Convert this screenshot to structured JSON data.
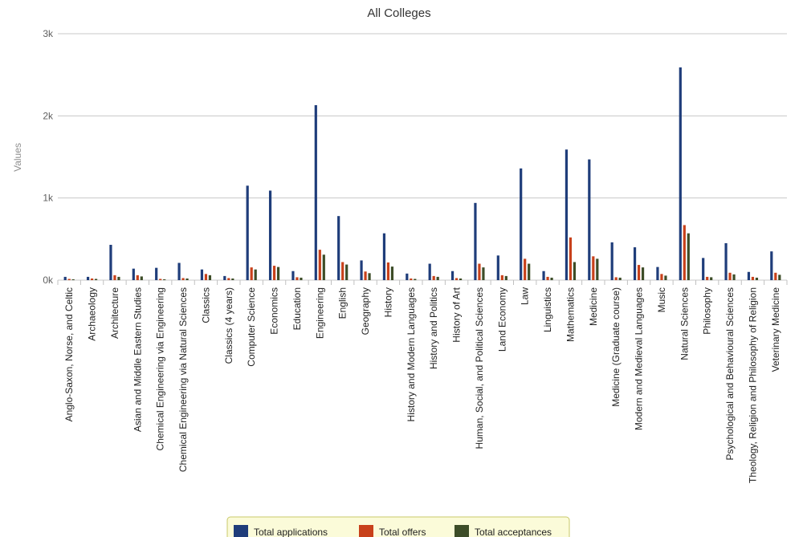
{
  "chart_data": {
    "type": "bar",
    "title": "All Colleges",
    "xlabel": "",
    "ylabel": "Values",
    "ylim": [
      0,
      3000
    ],
    "yticks": [
      0,
      1000,
      2000,
      3000
    ],
    "ytick_labels": [
      "0k",
      "1k",
      "2k",
      "3k"
    ],
    "grid": true,
    "legend_position": "bottom-center",
    "colors": [
      "#1f3d7a",
      "#c8411b",
      "#3d4d28"
    ],
    "categories": [
      "Anglo-Saxon, Norse, and Celtic",
      "Archaeology",
      "Architecture",
      "Asian and Middle Eastern Studies",
      "Chemical Engineering via Engineering",
      "Chemical Engineering via Natural Sciences",
      "Classics",
      "Classics (4 years)",
      "Computer Science",
      "Economics",
      "Education",
      "Engineering",
      "English",
      "Geography",
      "History",
      "History and Modern Languages",
      "History and Politics",
      "History of Art",
      "Human, Social, and Political Sciences",
      "Land Economy",
      "Law",
      "Linguistics",
      "Mathematics",
      "Medicine",
      "Medicine (Graduate course)",
      "Modern and Medieval Languages",
      "Music",
      "Natural Sciences",
      "Philosophy",
      "Psychological and Behavioural Sciences",
      "Theology, Religion and Philosophy of Religion",
      "Veterinary Medicine"
    ],
    "series": [
      {
        "name": "Total applications",
        "values": [
          40,
          40,
          430,
          140,
          150,
          210,
          130,
          50,
          1150,
          1090,
          110,
          2130,
          780,
          240,
          570,
          80,
          200,
          110,
          940,
          300,
          1360,
          110,
          1590,
          1470,
          460,
          400,
          160,
          2590,
          270,
          450,
          100,
          350
        ]
      },
      {
        "name": "Total offers",
        "values": [
          15,
          20,
          60,
          60,
          15,
          25,
          75,
          25,
          155,
          175,
          35,
          370,
          220,
          105,
          215,
          20,
          50,
          25,
          200,
          60,
          260,
          40,
          520,
          290,
          35,
          185,
          75,
          670,
          40,
          90,
          40,
          90
        ]
      },
      {
        "name": "Total acceptances",
        "values": [
          10,
          15,
          40,
          45,
          10,
          20,
          60,
          20,
          130,
          160,
          30,
          310,
          190,
          85,
          165,
          15,
          40,
          20,
          155,
          50,
          200,
          30,
          220,
          260,
          30,
          155,
          55,
          570,
          35,
          70,
          30,
          65
        ]
      }
    ]
  }
}
